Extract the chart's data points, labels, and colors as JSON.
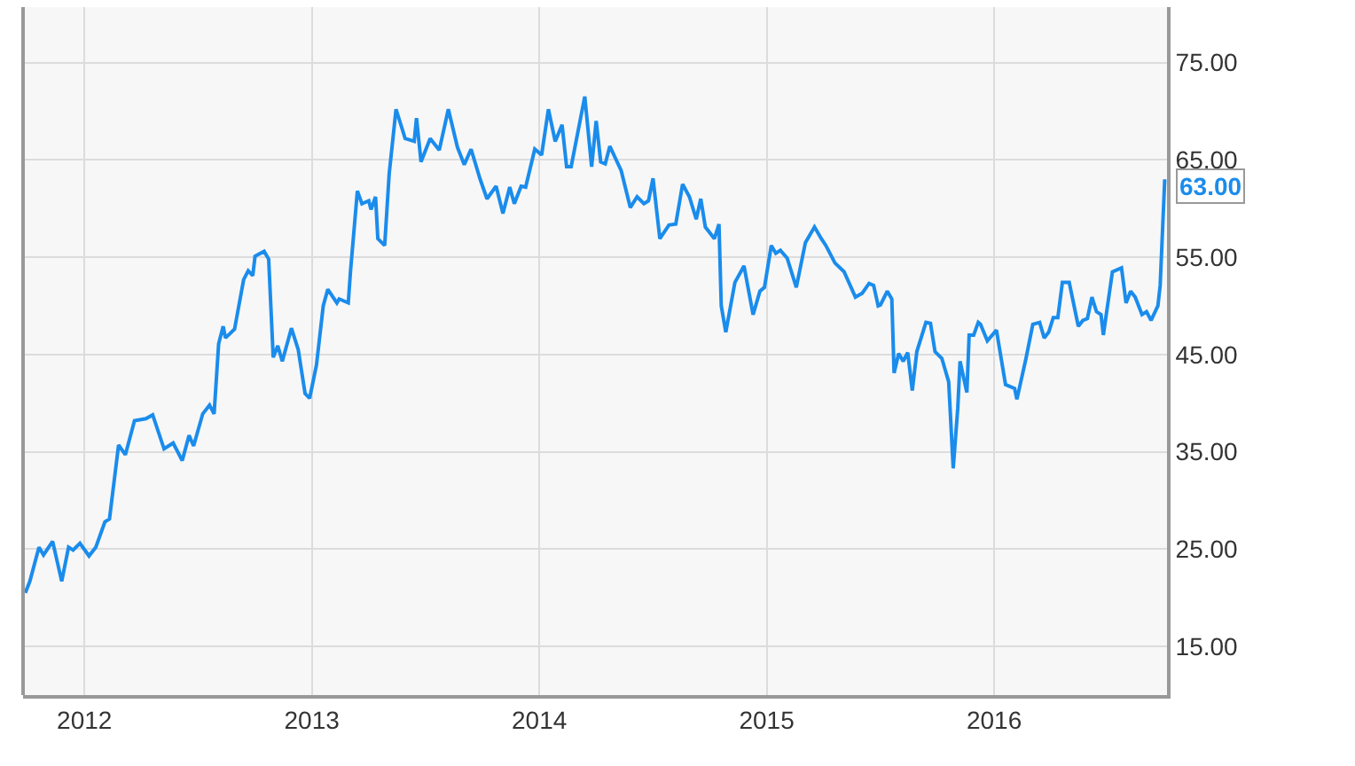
{
  "chart_data": {
    "type": "line",
    "x": [
      2011.74,
      2011.76,
      2011.8,
      2011.82,
      2011.86,
      2011.9,
      2011.93,
      2011.95,
      2011.98,
      2012.02,
      2012.05,
      2012.09,
      2012.11,
      2012.15,
      2012.18,
      2012.22,
      2012.27,
      2012.3,
      2012.35,
      2012.39,
      2012.43,
      2012.46,
      2012.48,
      2012.52,
      2012.55,
      2012.57,
      2012.59,
      2012.61,
      2012.62,
      2012.66,
      2012.7,
      2012.72,
      2012.74,
      2012.75,
      2012.79,
      2012.81,
      2012.83,
      2012.85,
      2012.87,
      2012.91,
      2012.94,
      2012.97,
      2012.99,
      2013.02,
      2013.05,
      2013.07,
      2013.11,
      2013.12,
      2013.16,
      2013.17,
      2013.2,
      2013.22,
      2013.25,
      2013.26,
      2013.28,
      2013.29,
      2013.32,
      2013.34,
      2013.37,
      2013.41,
      2013.45,
      2013.46,
      2013.48,
      2013.52,
      2013.56,
      2013.6,
      2013.64,
      2013.67,
      2013.7,
      2013.74,
      2013.77,
      2013.81,
      2013.84,
      2013.87,
      2013.89,
      2013.92,
      2013.94,
      2013.98,
      2014.01,
      2014.04,
      2014.07,
      2014.1,
      2014.12,
      2014.14,
      2014.2,
      2014.23,
      2014.25,
      2014.27,
      2014.29,
      2014.31,
      2014.36,
      2014.4,
      2014.43,
      2014.46,
      2014.48,
      2014.5,
      2014.53,
      2014.57,
      2014.6,
      2014.63,
      2014.66,
      2014.69,
      2014.71,
      2014.73,
      2014.77,
      2014.79,
      2014.8,
      2014.82,
      2014.86,
      2014.9,
      2014.94,
      2014.97,
      2014.99,
      2015.02,
      2015.04,
      2015.06,
      2015.09,
      2015.13,
      2015.17,
      2015.21,
      2015.24,
      2015.26,
      2015.3,
      2015.34,
      2015.39,
      2015.42,
      2015.45,
      2015.47,
      2015.49,
      2015.5,
      2015.53,
      2015.55,
      2015.56,
      2015.58,
      2015.6,
      2015.62,
      2015.64,
      2015.66,
      2015.7,
      2015.72,
      2015.74,
      2015.77,
      2015.8,
      2015.82,
      2015.84,
      2015.85,
      2015.88,
      2015.89,
      2015.91,
      2015.93,
      2015.94,
      2015.97,
      2016.01,
      2016.05,
      2016.09,
      2016.1,
      2016.14,
      2016.17,
      2016.2,
      2016.22,
      2016.24,
      2016.26,
      2016.28,
      2016.3,
      2016.33,
      2016.37,
      2016.39,
      2016.41,
      2016.43,
      2016.45,
      2016.47,
      2016.48,
      2016.52,
      2016.56,
      2016.58,
      2016.6,
      2016.62,
      2016.65,
      2016.67,
      2016.69,
      2016.72,
      2016.73,
      2016.75
    ],
    "series": [
      {
        "color": "#1a8cec",
        "values": [
          20.5,
          21.7,
          25.2,
          24.4,
          25.8,
          21.7,
          25.2,
          24.9,
          25.6,
          24.3,
          25.2,
          27.8,
          28.1,
          35.7,
          34.7,
          38.2,
          38.4,
          38.8,
          35.3,
          35.9,
          34.1,
          36.7,
          35.6,
          38.9,
          39.8,
          38.9,
          46.1,
          47.9,
          46.7,
          47.6,
          52.7,
          53.6,
          53.1,
          55.1,
          55.6,
          54.8,
          44.7,
          45.9,
          44.3,
          47.7,
          45.5,
          41.0,
          40.5,
          43.9,
          50.0,
          51.7,
          50.3,
          50.7,
          50.3,
          53.6,
          61.8,
          60.5,
          60.8,
          59.9,
          61.2,
          56.9,
          56.2,
          63.6,
          70.2,
          67.2,
          66.9,
          69.3,
          64.8,
          67.2,
          66.0,
          70.2,
          66.3,
          64.5,
          66.1,
          63.0,
          61.0,
          62.3,
          59.5,
          62.2,
          60.5,
          62.3,
          62.2,
          66.1,
          65.5,
          70.2,
          66.9,
          68.6,
          64.3,
          64.3,
          71.5,
          64.3,
          69.0,
          64.8,
          64.6,
          66.4,
          63.9,
          60.1,
          61.2,
          60.5,
          60.8,
          63.1,
          56.9,
          58.3,
          58.4,
          62.5,
          61.2,
          58.9,
          61.0,
          58.1,
          56.9,
          58.4,
          50.0,
          47.3,
          52.4,
          54.1,
          49.1,
          51.5,
          51.9,
          56.2,
          55.4,
          55.7,
          54.9,
          51.9,
          56.5,
          58.1,
          56.9,
          56.2,
          54.4,
          53.5,
          50.9,
          51.3,
          52.3,
          52.1,
          50.0,
          50.1,
          51.5,
          50.7,
          43.1,
          45.1,
          44.3,
          45.2,
          41.3,
          45.3,
          48.3,
          48.2,
          45.3,
          44.6,
          42.2,
          33.3,
          39.5,
          44.3,
          41.1,
          47.0,
          47.0,
          48.3,
          48.1,
          46.4,
          47.5,
          41.9,
          41.5,
          40.4,
          44.6,
          48.1,
          48.3,
          46.7,
          47.3,
          48.8,
          48.8,
          52.4,
          52.4,
          47.9,
          48.5,
          48.7,
          50.9,
          49.4,
          49.1,
          47.0,
          53.5,
          53.9,
          50.3,
          51.5,
          50.9,
          49.1,
          49.4,
          48.5,
          50.0,
          52.1,
          63.0
        ]
      }
    ],
    "xlim": [
      2011.73,
      2016.76
    ],
    "xticks": [
      2012,
      2013,
      2014,
      2015,
      2016
    ],
    "ylim": [
      10,
      80.7
    ],
    "yticks": [
      {
        "value": 15,
        "label": "15.00"
      },
      {
        "value": 25,
        "label": "25.00"
      },
      {
        "value": 35,
        "label": "35.00"
      },
      {
        "value": 45,
        "label": "45.00"
      },
      {
        "value": 55,
        "label": "55.00"
      },
      {
        "value": 65,
        "label": "65.00"
      },
      {
        "value": 75,
        "label": "75.00"
      }
    ],
    "annotations": [
      {
        "text": "63.00",
        "x": 2016.75,
        "y": 63
      }
    ],
    "grid": true,
    "marker": "none",
    "line_style": "solid"
  }
}
